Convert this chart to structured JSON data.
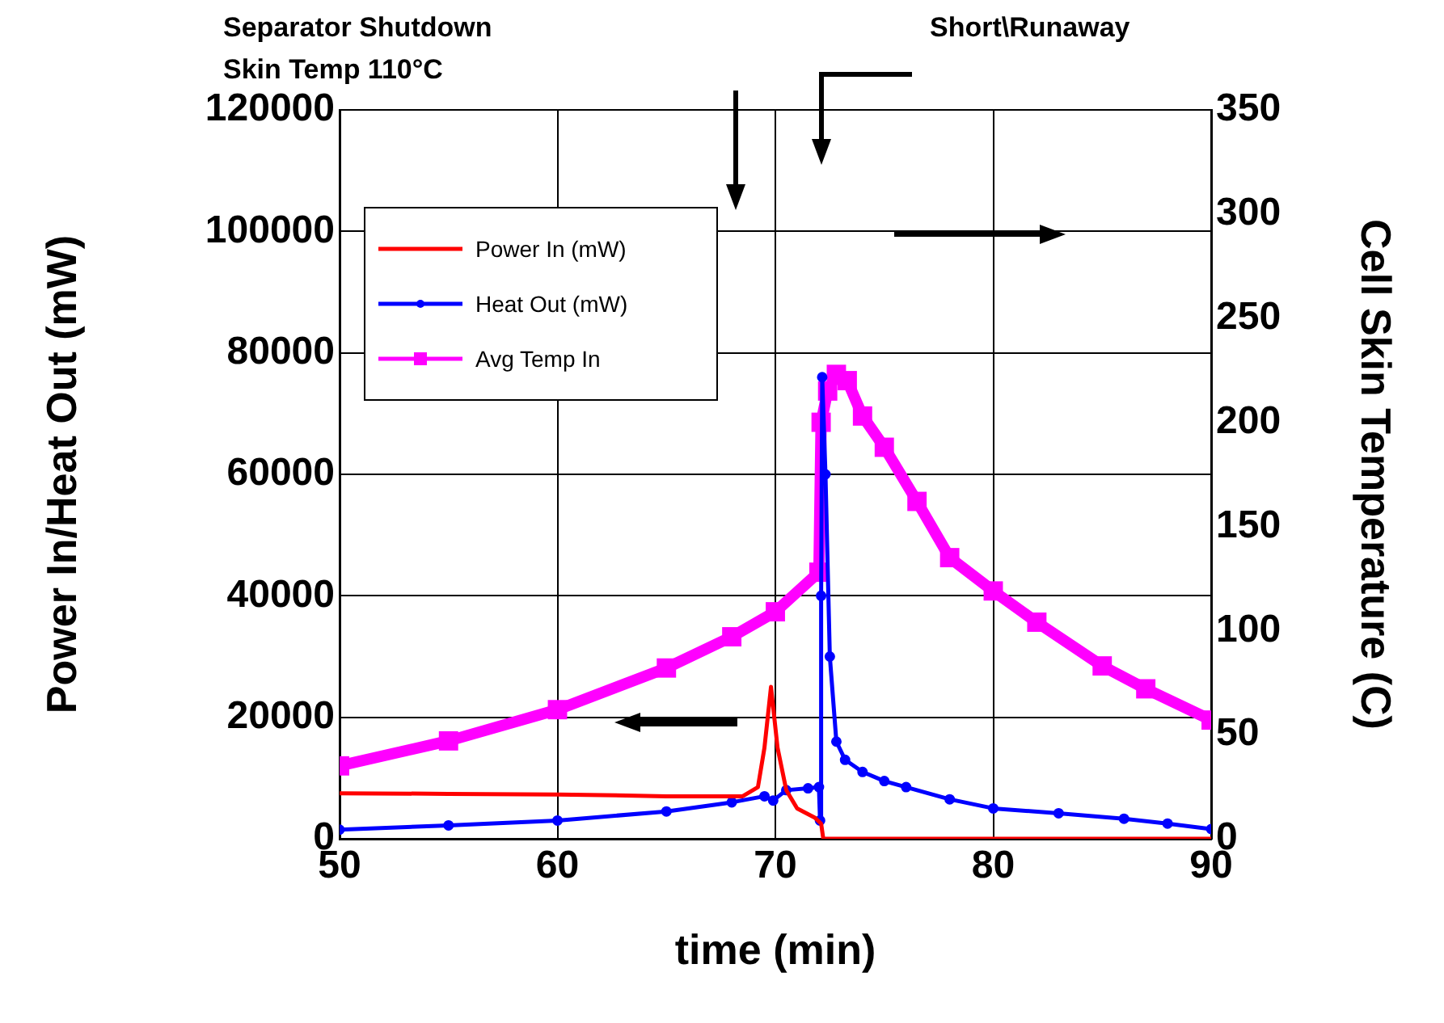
{
  "chart_data": {
    "type": "line",
    "xlabel": "time (min)",
    "ylabel": "Power In/Heat Out (mW)",
    "y2label": "Cell Skin Temperature (C)",
    "annotations": [
      "Separator Shutdown\nSkin Temp 110°C",
      "Short\\Runaway"
    ],
    "xlim": [
      50,
      90
    ],
    "xticks": [
      50,
      60,
      70,
      80,
      90
    ],
    "ylim": [
      0,
      120000
    ],
    "yticks": [
      0,
      20000,
      40000,
      60000,
      80000,
      100000,
      120000
    ],
    "y2lim": [
      0,
      350
    ],
    "y2ticks": [
      0,
      50,
      100,
      150,
      200,
      250,
      300,
      350
    ],
    "grid": true,
    "legend": "top left",
    "series": [
      {
        "name": "Power In (mW)",
        "color": "#ff0000",
        "marker": "none",
        "x": [
          50,
          55,
          60,
          65,
          68.5,
          69.2,
          69.5,
          69.8,
          70.1,
          70.5,
          71,
          71.8,
          72.1,
          72.2,
          90
        ],
        "values": [
          7500,
          7400,
          7300,
          7000,
          7000,
          8500,
          15000,
          25000,
          15000,
          8000,
          5000,
          3500,
          2500,
          0,
          0
        ]
      },
      {
        "name": "Heat Out (mW)",
        "color": "#0000ff",
        "marker": "circle",
        "x": [
          50,
          55,
          60,
          65,
          68,
          69.5,
          69.9,
          70.5,
          71.5,
          72,
          72.05,
          72.1,
          72.15,
          72.3,
          72.5,
          72.8,
          73.2,
          74,
          75,
          76,
          78,
          80,
          83,
          86,
          88,
          90
        ],
        "values": [
          1500,
          2200,
          3000,
          4500,
          6000,
          7000,
          6300,
          8000,
          8300,
          8500,
          3000,
          40000,
          76000,
          60000,
          30000,
          16000,
          13000,
          11000,
          9500,
          8500,
          6500,
          5000,
          4200,
          3300,
          2500,
          1600
        ]
      },
      {
        "name": "Avg Temp In",
        "color": "#ff00ff",
        "marker": "square",
        "axis": "y2",
        "x": [
          50,
          55,
          60,
          65,
          68,
          70,
          72,
          72.1,
          72.4,
          72.8,
          73.3,
          74,
          75,
          76.5,
          78,
          80,
          82,
          85,
          87,
          90
        ],
        "values": [
          35,
          47,
          62,
          82,
          97,
          109,
          128,
          200,
          215,
          223,
          220,
          203,
          188,
          162,
          135,
          119,
          104,
          83,
          72,
          57
        ]
      }
    ]
  }
}
